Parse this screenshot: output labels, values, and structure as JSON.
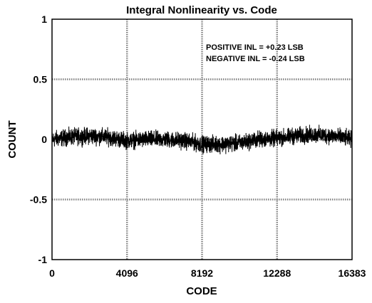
{
  "chart_data": {
    "type": "line",
    "title": "Integral Nonlinearity vs. Code",
    "xlabel": "CODE",
    "ylabel": "COUNT",
    "xlim": [
      0,
      16383
    ],
    "ylim": [
      -1,
      1
    ],
    "xticks": [
      0,
      4096,
      8192,
      12288,
      16383
    ],
    "xtick_labels": [
      "0",
      "4096",
      "8192",
      "12288",
      "16383"
    ],
    "yticks": [
      1,
      0.5,
      0,
      -0.5,
      -1
    ],
    "ytick_labels": [
      "1",
      "0.5",
      "0",
      "-0.5",
      "-1"
    ],
    "grid": true,
    "grid_style": "dotted",
    "annotations": [
      "POSITIVE INL = +0.23 LSB",
      "NEGATIVE INL = -0.24 LSB"
    ],
    "series": [
      {
        "color": "#000000",
        "trend_x": [
          0,
          1024,
          2048,
          3072,
          4096,
          5120,
          6144,
          7168,
          8192,
          9216,
          10240,
          11264,
          12288,
          13312,
          14336,
          15360,
          16383
        ],
        "trend_y": [
          0.0,
          0.02,
          0.03,
          0.02,
          -0.01,
          0.0,
          0.0,
          -0.01,
          -0.04,
          -0.04,
          -0.03,
          0.0,
          0.01,
          0.03,
          0.04,
          0.03,
          0.0
        ],
        "noise_peak_to_peak": 0.2,
        "max": 0.23,
        "min": -0.24
      }
    ],
    "colors": {
      "line": "#000000",
      "grid": "#808080",
      "background": "#ffffff"
    }
  }
}
